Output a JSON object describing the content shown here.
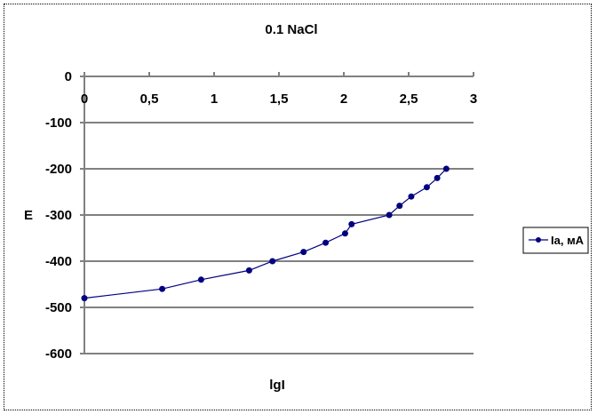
{
  "chart_data": {
    "type": "line",
    "title": "0.1 NaCl",
    "xlabel": "lgI",
    "ylabel": "E",
    "xlim": [
      0,
      3
    ],
    "ylim": [
      -600,
      0
    ],
    "xticks": [
      "0",
      "0,5",
      "1",
      "1,5",
      "2",
      "2,5",
      "3"
    ],
    "yticks": [
      "0",
      "-100",
      "-200",
      "-300",
      "-400",
      "-500",
      "-600"
    ],
    "grid": "horizontal",
    "legend_position": "right",
    "series": [
      {
        "name": "Iа, мА",
        "color": "#000080",
        "marker": "circle",
        "x": [
          0,
          0.6,
          0.9,
          1.27,
          1.45,
          1.69,
          1.86,
          2.01,
          2.06,
          2.35,
          2.43,
          2.52,
          2.64,
          2.72,
          2.79
        ],
        "y": [
          -480,
          -460,
          -440,
          -420,
          -400,
          -380,
          -360,
          -340,
          -320,
          -300,
          -280,
          -260,
          -240,
          -220,
          -200
        ]
      }
    ]
  }
}
